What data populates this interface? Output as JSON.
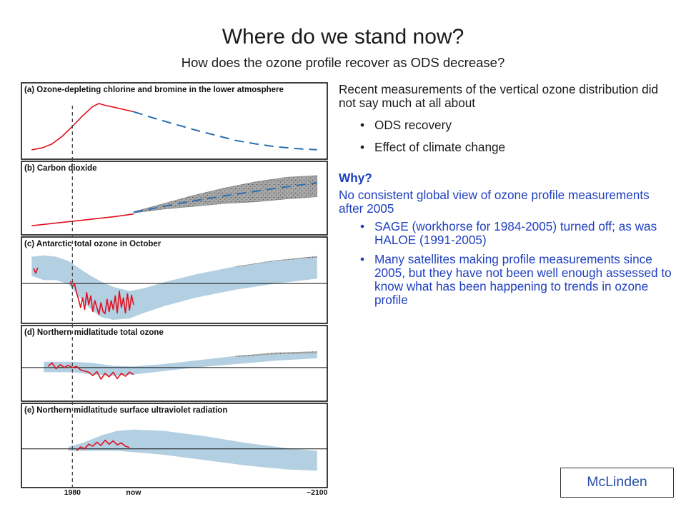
{
  "slide": {
    "title": "Where do we stand now?",
    "subtitle": "How does the ozone profile recover as ODS decrease?"
  },
  "text": {
    "intro": "Recent measurements of the vertical ozone distribution did not say much at all about",
    "bullets": [
      "ODS recovery",
      "Effect of climate change"
    ],
    "why": "Why?",
    "why_body": "No consistent global view of ozone profile measurements after 2005",
    "why_bullets": [
      "SAGE (workhorse for 1984-2005) turned off; as was HALOE (1991-2005)",
      "Many satellites making profile measurements since 2005, but they have not been well enough assessed to know what has been happening to trends in ozone profile"
    ]
  },
  "credit": "McLinden",
  "colors": {
    "observed": "#e0101e",
    "projection": "#2a6fb0",
    "range_fill": "#b3cfe2",
    "stipple_fill": "#a8a8a8"
  },
  "chart_data": {
    "type": "line",
    "x_axis": {
      "ticks": [
        "1980",
        "now",
        "~2100"
      ],
      "marker": "1980"
    },
    "panels": [
      {
        "id": "a",
        "title": "(a) Ozone-depleting chlorine and bromine in the lower atmosphere",
        "observed": {
          "x": [
            1960,
            1965,
            1970,
            1975,
            1980,
            1985,
            1990,
            1993,
            1996,
            2000,
            2005,
            2010
          ],
          "y": [
            0.1,
            0.13,
            0.2,
            0.33,
            0.5,
            0.68,
            0.84,
            0.89,
            0.86,
            0.83,
            0.79,
            0.75
          ]
        },
        "projection": {
          "style": "dashed",
          "x": [
            2010,
            2020,
            2030,
            2040,
            2050,
            2060,
            2070,
            2080,
            2090,
            2100
          ],
          "y": [
            0.75,
            0.64,
            0.54,
            0.44,
            0.35,
            0.26,
            0.2,
            0.15,
            0.12,
            0.1
          ]
        }
      },
      {
        "id": "b",
        "title": "(b) Carbon dioxide",
        "observed": {
          "x": [
            1960,
            1970,
            1980,
            1990,
            2000,
            2010
          ],
          "y": [
            0.1,
            0.14,
            0.18,
            0.22,
            0.26,
            0.31
          ]
        },
        "projection": {
          "style": "dashed",
          "x": [
            2010,
            2025,
            2040,
            2055,
            2070,
            2085,
            2100
          ],
          "y": [
            0.34,
            0.45,
            0.55,
            0.64,
            0.72,
            0.8,
            0.87
          ]
        },
        "range": {
          "style": "stippled",
          "x": [
            2010,
            2025,
            2040,
            2055,
            2070,
            2085,
            2100
          ],
          "upper": [
            0.35,
            0.5,
            0.65,
            0.78,
            0.89,
            0.97,
            1.0
          ],
          "lower": [
            0.33,
            0.4,
            0.45,
            0.5,
            0.53,
            0.58,
            0.62
          ]
        }
      },
      {
        "id": "c",
        "title": "(c) Antarctic total ozone in October",
        "reference_line": 0.53,
        "observed_segments": [
          {
            "x": [
              1961,
              1962,
              1963
            ],
            "y": [
              0.75,
              0.68,
              0.76
            ]
          },
          {
            "x": [
              1979,
              1980,
              1981,
              1982,
              1983,
              1984,
              1985,
              1986,
              1987,
              1988,
              1989,
              1990,
              1991,
              1992,
              1993,
              1994,
              1995,
              1996,
              1997,
              1998,
              1999,
              2000,
              2001,
              2002,
              2003,
              2004,
              2005,
              2006,
              2007,
              2008,
              2009,
              2010
            ],
            "y": [
              0.56,
              0.48,
              0.53,
              0.4,
              0.3,
              0.18,
              0.32,
              0.15,
              0.4,
              0.22,
              0.35,
              0.12,
              0.28,
              0.18,
              0.08,
              0.25,
              0.12,
              0.09,
              0.3,
              0.12,
              0.28,
              0.15,
              0.35,
              0.1,
              0.42,
              0.18,
              0.32,
              0.1,
              0.38,
              0.14,
              0.36,
              0.22
            ]
          }
        ],
        "range": {
          "x": [
            1960,
            1966,
            1972,
            1978,
            1982,
            1988,
            1994,
            2000,
            2008,
            2015,
            2025,
            2040,
            2060,
            2080,
            2100
          ],
          "upper": [
            0.92,
            0.94,
            0.92,
            0.86,
            0.78,
            0.66,
            0.56,
            0.48,
            0.42,
            0.46,
            0.55,
            0.66,
            0.78,
            0.87,
            0.93
          ],
          "lower": [
            0.64,
            0.58,
            0.58,
            0.52,
            0.38,
            0.18,
            0.04,
            0.0,
            0.02,
            0.1,
            0.2,
            0.32,
            0.44,
            0.53,
            0.6
          ]
        },
        "range_stipple": {
          "x": [
            2060,
            2080,
            2100
          ],
          "upper": [
            0.78,
            0.87,
            0.93
          ],
          "lower": [
            0.77,
            0.86,
            0.91
          ]
        }
      },
      {
        "id": "d",
        "title": "(d) Northern midlatitude total ozone",
        "reference_line": 0.52,
        "observed": {
          "x": [
            1968,
            1970,
            1972,
            1974,
            1976,
            1978,
            1980,
            1982,
            1984,
            1986,
            1988,
            1990,
            1992,
            1994,
            1996,
            1998,
            2000,
            2002,
            2004,
            2006,
            2008,
            2010
          ],
          "y": [
            0.54,
            0.6,
            0.5,
            0.57,
            0.52,
            0.56,
            0.52,
            0.54,
            0.48,
            0.46,
            0.44,
            0.38,
            0.45,
            0.32,
            0.42,
            0.36,
            0.44,
            0.33,
            0.42,
            0.37,
            0.44,
            0.4
          ]
        },
        "range": {
          "x": [
            1966,
            1980,
            1990,
            2000,
            2010,
            2025,
            2040,
            2060,
            2080,
            2100
          ],
          "upper": [
            0.62,
            0.62,
            0.6,
            0.55,
            0.54,
            0.58,
            0.64,
            0.72,
            0.78,
            0.8
          ],
          "lower": [
            0.44,
            0.44,
            0.4,
            0.38,
            0.4,
            0.46,
            0.52,
            0.58,
            0.64,
            0.68
          ]
        },
        "range_stipple": {
          "x": [
            2060,
            2080,
            2100
          ],
          "upper": [
            0.72,
            0.78,
            0.8
          ],
          "lower": [
            0.7,
            0.75,
            0.77
          ]
        }
      },
      {
        "id": "e",
        "title": "(e) Northern midlatitude surface ultraviolet radiation",
        "reference_line": 0.53,
        "observed": {
          "x": [
            1982,
            1984,
            1986,
            1988,
            1990,
            1992,
            1994,
            1996,
            1998,
            2000,
            2002,
            2004,
            2006,
            2008
          ],
          "y": [
            0.5,
            0.56,
            0.53,
            0.6,
            0.57,
            0.63,
            0.58,
            0.66,
            0.6,
            0.65,
            0.59,
            0.62,
            0.57,
            0.55
          ]
        },
        "range": {
          "x": [
            1978,
            1985,
            1995,
            2002,
            2010,
            2025,
            2045,
            2065,
            2085,
            2100
          ],
          "upper": [
            0.56,
            0.62,
            0.74,
            0.8,
            0.82,
            0.8,
            0.72,
            0.62,
            0.54,
            0.5
          ],
          "lower": [
            0.5,
            0.5,
            0.5,
            0.5,
            0.48,
            0.44,
            0.36,
            0.28,
            0.22,
            0.2
          ]
        }
      }
    ]
  }
}
